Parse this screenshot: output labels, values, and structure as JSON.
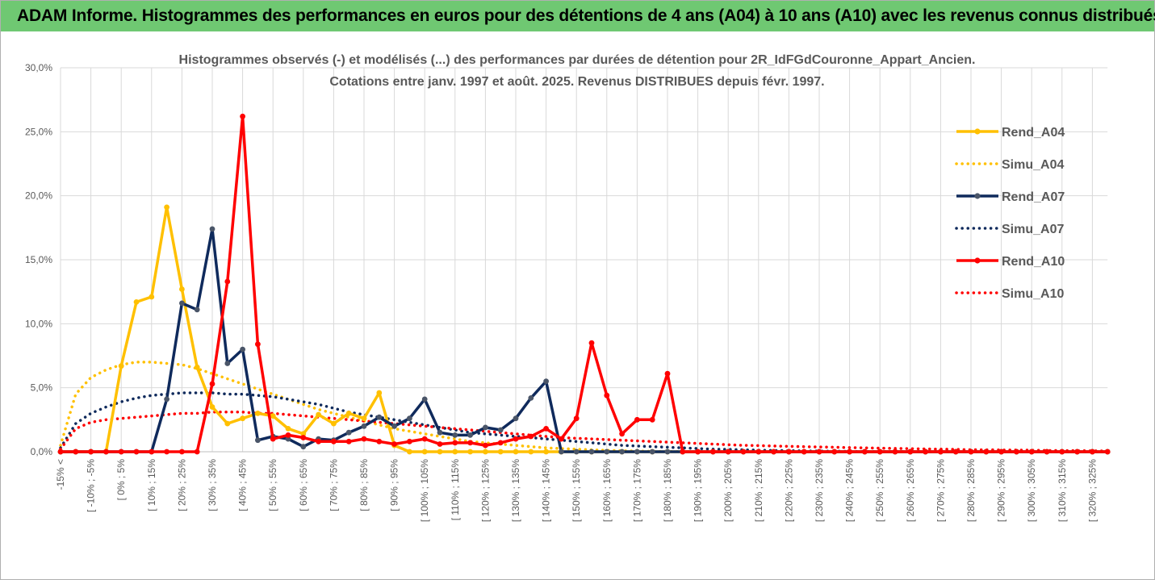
{
  "banner": {
    "title": "ADAM Informe. Histogrammes des performances en euros pour des détentions de 4 ans (A04) à 10 ans (A10) avec les revenus connus distribués"
  },
  "colors": {
    "banner_bg": "#6fc872",
    "a04": "#ffc000",
    "a07": "#0f2a5c",
    "a10": "#ff0000"
  },
  "chart_data": {
    "type": "line",
    "title_lines": [
      "Histogrammes observés (-) et modélisés (...) des performances par durées de détention pour 2R_IdFGdCouronne_Appart_Ancien.",
      "Cotations entre janv. 1997 et août. 2025. Revenus DISTRIBUES depuis févr. 1997."
    ],
    "y_ticks": [
      "0,0%",
      "5,0%",
      "10,0%",
      "15,0%",
      "20,0%",
      "25,0%",
      "30,0%"
    ],
    "ylim": [
      0,
      30
    ],
    "x_labels": [
      "-15% <",
      "[ -10% ; -5%",
      "[ 0% ; 5%",
      "[ 10% ; 15%",
      "[ 20% ; 25%",
      "[ 30% ; 35%",
      "[ 40% ; 45%",
      "[ 50% ; 55%",
      "[ 60% ; 65%",
      "[ 70% ; 75%",
      "[ 80% ; 85%",
      "[ 90% ; 95%",
      "[ 100% ; 105%",
      "[ 110% ; 115%",
      "[ 120% ; 125%",
      "[ 130% ; 135%",
      "[ 140% ; 145%",
      "[ 150% ; 155%",
      "[ 160% ; 165%",
      "[ 170% ; 175%",
      "[ 180% ; 185%",
      "[ 190% ; 195%",
      "[ 200% ; 205%",
      "[ 210% ; 215%",
      "[ 220% ; 225%",
      "[ 230% ; 235%",
      "[ 240% ; 245%",
      "[ 250% ; 255%",
      "[ 260% ; 265%",
      "[ 270% ; 275%",
      "[ 280% ; 285%",
      "[ 290% ; 295%",
      "[ 300% ; 305%",
      "[ 310% ; 315%",
      "[ 320% ; 325%"
    ],
    "series": [
      {
        "name": "Rend_A04",
        "style": "solid",
        "color": "#ffc000",
        "values": [
          0,
          0,
          0,
          0,
          6.7,
          11.7,
          12.1,
          19.1,
          12.7,
          6.6,
          3.5,
          2.2,
          2.6,
          3.0,
          2.8,
          1.8,
          1.4,
          2.9,
          2.2,
          3.0,
          2.6,
          4.6,
          0.5,
          0,
          0,
          0,
          0,
          0,
          0,
          0,
          0,
          0,
          0,
          0,
          0,
          0,
          0,
          0,
          0,
          0,
          0,
          0,
          0,
          0,
          0,
          0,
          0,
          0,
          0,
          0,
          0,
          0,
          0,
          0,
          0,
          0,
          0,
          0,
          0,
          0,
          0,
          0,
          0,
          0,
          0,
          0,
          0,
          0,
          0,
          0
        ]
      },
      {
        "name": "Simu_A04",
        "style": "dotted",
        "color": "#ffc000",
        "values": [
          0.5,
          4.5,
          5.8,
          6.4,
          6.8,
          7.0,
          7.0,
          6.9,
          6.8,
          6.5,
          6.1,
          5.7,
          5.3,
          4.9,
          4.5,
          4.1,
          3.7,
          3.3,
          3.0,
          2.7,
          2.4,
          2.1,
          1.8,
          1.6,
          1.4,
          1.2,
          1.0,
          0.8,
          0.7,
          0.6,
          0.5,
          0.4,
          0.3,
          0.25,
          0.2,
          0.15,
          0.1,
          0.08,
          0.05,
          0.03,
          0.02,
          0.01,
          0,
          0,
          0,
          0,
          0,
          0,
          0,
          0,
          0,
          0,
          0,
          0,
          0,
          0,
          0,
          0,
          0,
          0,
          0,
          0,
          0,
          0,
          0,
          0,
          0,
          0,
          0,
          0
        ]
      },
      {
        "name": "Rend_A07",
        "style": "solid",
        "color": "#0f2a5c",
        "values": [
          0,
          0,
          0,
          0,
          0,
          0,
          0,
          4.1,
          11.6,
          11.1,
          17.4,
          6.9,
          8.0,
          0.9,
          1.2,
          1.0,
          0.4,
          1.0,
          0.9,
          1.5,
          2.0,
          2.7,
          2.0,
          2.6,
          4.1,
          1.5,
          1.3,
          1.3,
          1.9,
          1.7,
          2.6,
          4.2,
          5.5,
          0,
          0,
          0,
          0,
          0,
          0,
          0,
          0,
          0,
          0,
          0,
          0,
          0,
          0,
          0,
          0,
          0,
          0,
          0,
          0,
          0,
          0,
          0,
          0,
          0,
          0,
          0,
          0,
          0,
          0,
          0,
          0,
          0,
          0,
          0,
          0,
          0
        ]
      },
      {
        "name": "Simu_A07",
        "style": "dotted",
        "color": "#0f2a5c",
        "values": [
          0.3,
          2.2,
          3.0,
          3.5,
          3.9,
          4.2,
          4.4,
          4.5,
          4.6,
          4.6,
          4.6,
          4.5,
          4.5,
          4.4,
          4.3,
          4.1,
          3.9,
          3.7,
          3.4,
          3.1,
          2.9,
          2.7,
          2.5,
          2.3,
          2.1,
          1.9,
          1.7,
          1.5,
          1.4,
          1.3,
          1.2,
          1.1,
          1.0,
          0.9,
          0.8,
          0.7,
          0.6,
          0.5,
          0.45,
          0.4,
          0.35,
          0.3,
          0.25,
          0.2,
          0.18,
          0.15,
          0.12,
          0.1,
          0.08,
          0.06,
          0.05,
          0.04,
          0.03,
          0.02,
          0.02,
          0.01,
          0.01,
          0,
          0,
          0,
          0,
          0,
          0,
          0,
          0,
          0,
          0,
          0,
          0,
          0
        ]
      },
      {
        "name": "Rend_A10",
        "style": "solid",
        "color": "#ff0000",
        "values": [
          0,
          0,
          0,
          0,
          0,
          0,
          0,
          0,
          0,
          0,
          5.3,
          13.3,
          26.2,
          8.4,
          1.0,
          1.3,
          1.1,
          0.8,
          0.8,
          0.8,
          1.0,
          0.8,
          0.6,
          0.8,
          1.0,
          0.6,
          0.7,
          0.7,
          0.5,
          0.7,
          1.0,
          1.2,
          1.8,
          1.0,
          2.6,
          8.5,
          4.4,
          1.4,
          2.5,
          2.5,
          6.1,
          0,
          0,
          0,
          0,
          0,
          0,
          0,
          0,
          0,
          0,
          0,
          0,
          0,
          0,
          0,
          0,
          0,
          0,
          0,
          0,
          0,
          0,
          0,
          0,
          0,
          0,
          0,
          0,
          0
        ]
      },
      {
        "name": "Simu_A10",
        "style": "dotted",
        "color": "#ff0000",
        "values": [
          0.2,
          1.8,
          2.3,
          2.5,
          2.6,
          2.7,
          2.8,
          2.9,
          3.0,
          3.0,
          3.1,
          3.1,
          3.1,
          3.0,
          3.0,
          2.9,
          2.8,
          2.7,
          2.6,
          2.5,
          2.4,
          2.3,
          2.2,
          2.1,
          2.0,
          1.9,
          1.8,
          1.7,
          1.6,
          1.5,
          1.4,
          1.3,
          1.2,
          1.1,
          1.05,
          1.0,
          0.95,
          0.9,
          0.85,
          0.8,
          0.75,
          0.7,
          0.65,
          0.6,
          0.55,
          0.5,
          0.48,
          0.45,
          0.42,
          0.4,
          0.37,
          0.35,
          0.32,
          0.3,
          0.28,
          0.26,
          0.24,
          0.22,
          0.2,
          0.18,
          0.16,
          0.15,
          0.14,
          0.13,
          0.12,
          0.1,
          0.09,
          0.08,
          0.07,
          0.06
        ]
      }
    ],
    "legend_position": "right"
  }
}
